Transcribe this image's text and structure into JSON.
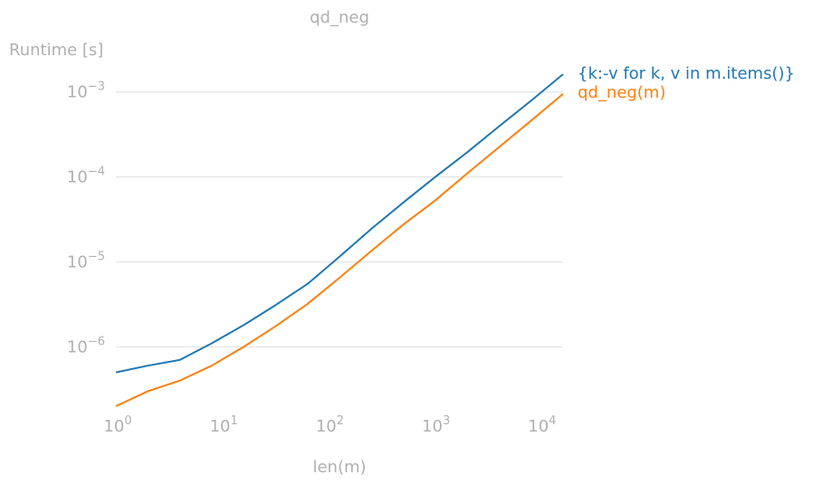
{
  "chart_data": {
    "type": "line",
    "title": "qd_neg",
    "xlabel": "len(m)",
    "ylabel": "Runtime [s]",
    "xscale": "log",
    "yscale": "log",
    "xlim": [
      1,
      16384
    ],
    "ylim": [
      2e-07,
      0.0017
    ],
    "grid": "y-major",
    "legend": "right, labels at line ends",
    "x": [
      1,
      2,
      4,
      8,
      16,
      32,
      64,
      128,
      256,
      512,
      1024,
      2048,
      4096,
      8192,
      16384
    ],
    "x_ticks": [
      {
        "value": 1,
        "base": "10",
        "exp": "0"
      },
      {
        "value": 10,
        "base": "10",
        "exp": "1"
      },
      {
        "value": 100,
        "base": "10",
        "exp": "2"
      },
      {
        "value": 1000,
        "base": "10",
        "exp": "3"
      },
      {
        "value": 10000,
        "base": "10",
        "exp": "4"
      }
    ],
    "y_ticks": [
      {
        "value": 1e-06,
        "base": "10",
        "exp": "−6"
      },
      {
        "value": 1e-05,
        "base": "10",
        "exp": "−5"
      },
      {
        "value": 0.0001,
        "base": "10",
        "exp": "−4"
      },
      {
        "value": 0.001,
        "base": "10",
        "exp": "−3"
      }
    ],
    "series": [
      {
        "name": "{k:-v for k, v in m.items()}",
        "color": "#1f77b4",
        "values": [
          5e-07,
          6e-07,
          7e-07,
          1.1e-06,
          1.8e-06,
          3.1e-06,
          5.5e-06,
          1.15e-05,
          2.45e-05,
          5e-05,
          0.0001,
          0.000195,
          0.000395,
          0.00079,
          0.00162
        ]
      },
      {
        "name": "qd_neg(m)",
        "color": "#ff7f0e",
        "values": [
          2e-07,
          3e-07,
          4e-07,
          6e-07,
          1e-06,
          1.75e-06,
          3.2e-06,
          6.5e-06,
          1.35e-05,
          2.75e-05,
          5.3e-05,
          0.00011,
          0.000225,
          0.00046,
          0.00095
        ]
      }
    ]
  }
}
